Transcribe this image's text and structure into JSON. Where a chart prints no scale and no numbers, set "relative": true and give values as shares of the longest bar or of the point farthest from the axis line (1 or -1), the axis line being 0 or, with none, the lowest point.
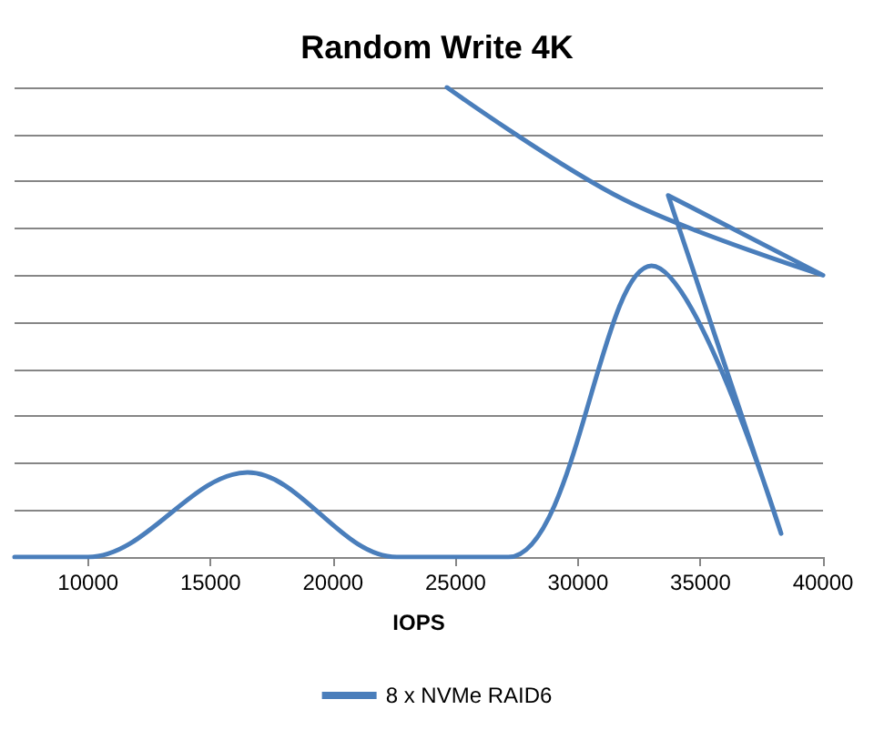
{
  "chart_data": {
    "type": "line",
    "title": "Random Write 4K",
    "xlabel": "IOPS",
    "relative": true,
    "xlim": [
      7000,
      40000
    ],
    "xticks": [
      10000,
      15000,
      20000,
      25000,
      30000,
      35000,
      40000
    ],
    "series": [
      {
        "name": "8 x NVMe RAID6",
        "color": "#4a7ebb",
        "x": [
          7000,
          10000,
          16510,
          22600,
          27160,
          33000,
          38290,
          33680,
          40000,
          31910,
          24650
        ],
        "values": [
          0,
          0,
          0.18,
          0,
          0,
          0.62,
          0.05,
          0.77,
          0.6,
          0.76,
          1
        ]
      }
    ],
    "grid": "y",
    "legend": "bottom",
    "tick_labels": "x",
    "marker": "none",
    "line_style": "solid"
  }
}
